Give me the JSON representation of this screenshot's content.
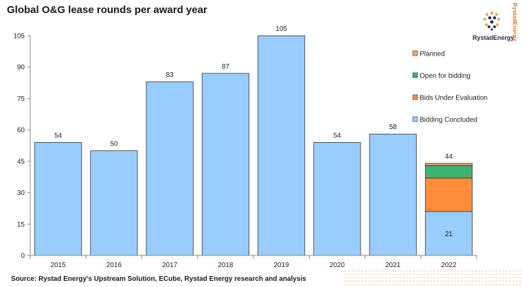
{
  "title": "Global O&G lease rounds per award year",
  "source": "Source: Rystad Energy's Upstream Solution,  ECube, Rystad Energy research and analysis",
  "logo": {
    "name": "RystadEnergy",
    "vertical": "RystadEnergy"
  },
  "colors": {
    "Bidding Concluded": "#99ccff",
    "Bids Under Evaluation": "#ff8c3c",
    "Open for bidding": "#3cb371",
    "Planned": "#f5a46c"
  },
  "chart_data": {
    "type": "bar",
    "stacked": true,
    "categories": [
      "2015",
      "2016",
      "2017",
      "2018",
      "2019",
      "2020",
      "2021",
      "2022"
    ],
    "series": [
      {
        "name": "Bidding Concluded",
        "values": [
          54,
          50,
          83,
          87,
          105,
          54,
          58,
          21
        ]
      },
      {
        "name": "Bids Under Evaluation",
        "values": [
          0,
          0,
          0,
          0,
          0,
          0,
          0,
          16
        ]
      },
      {
        "name": "Open for bidding",
        "values": [
          0,
          0,
          0,
          0,
          0,
          0,
          0,
          6
        ]
      },
      {
        "name": "Planned",
        "values": [
          0,
          0,
          0,
          0,
          0,
          0,
          0,
          1
        ]
      }
    ],
    "totals": [
      54,
      50,
      83,
      87,
      105,
      54,
      58,
      44
    ],
    "inner_labels": {
      "2022": "21"
    },
    "yticks": [
      0,
      15,
      30,
      45,
      60,
      75,
      90,
      105
    ],
    "ylim": [
      0,
      105
    ],
    "legend": [
      "Planned",
      "Open for bidding",
      "Bids Under Evaluation",
      "Bidding Concluded"
    ],
    "legend_position": "right",
    "grid": false,
    "xlabel": "",
    "ylabel": ""
  }
}
